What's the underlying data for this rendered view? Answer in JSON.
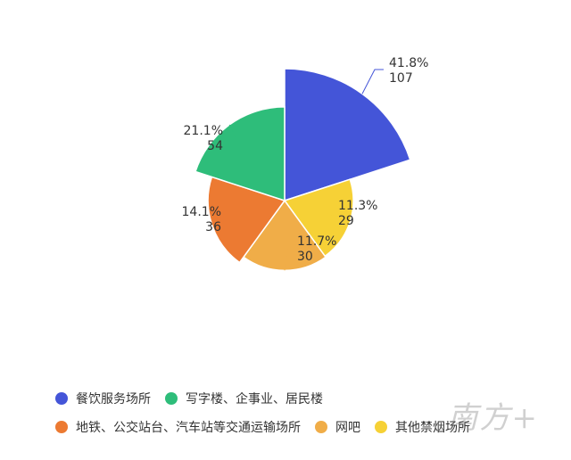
{
  "chart_data": {
    "type": "pie",
    "subtype": "rose",
    "series": [
      {
        "name": "餐饮服务场所",
        "percent_label": "41.8%",
        "value": 107,
        "color": "#4455d8"
      },
      {
        "name": "写字楼、企事业、居民楼",
        "percent_label": "21.1%",
        "value": 54,
        "color": "#2ebd7a"
      },
      {
        "name": "地铁、公交站台、汽车站等交通运输场所",
        "percent_label": "14.1%",
        "value": 36,
        "color": "#ec7a32"
      },
      {
        "name": "网吧",
        "percent_label": "11.7%",
        "value": 30,
        "color": "#f0ad48"
      },
      {
        "name": "其他禁烟场所",
        "percent_label": "11.3%",
        "value": 29,
        "color": "#f6d136"
      }
    ],
    "legend_position": "bottom"
  },
  "watermark": "南方+"
}
